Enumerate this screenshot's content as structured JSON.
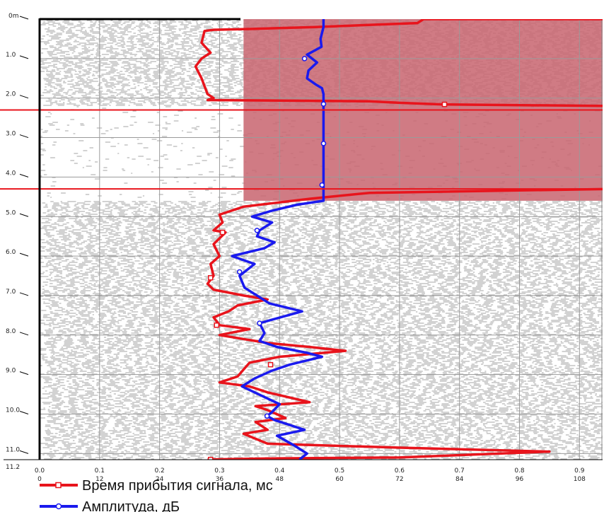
{
  "chart_data": {
    "type": "line",
    "orientation": "depth-vertical",
    "y_axis": {
      "label": "",
      "range": [
        0,
        11.2
      ],
      "top_label": "0m",
      "bottom_label": "11.2",
      "tick_labels": [
        "1.0",
        "2.0",
        "3.0",
        "4.0",
        "5.0",
        "6.0",
        "7.0",
        "8.0",
        "9.0",
        "10.0",
        "11.0"
      ]
    },
    "x_axis_time": {
      "range": [
        0,
        1.0
      ],
      "tick_labels": [
        "0.0",
        "0.1",
        "0.2",
        "0.3",
        "0.4",
        "0.5",
        "0.6",
        "0.7",
        "0.8",
        "0.9"
      ]
    },
    "x_axis_amplitude": {
      "range": [
        0,
        120
      ],
      "tick_labels": [
        "0",
        "12",
        "24",
        "36",
        "48",
        "60",
        "72",
        "84",
        "96",
        "108"
      ]
    },
    "grid": true,
    "background": "seismogram",
    "shaded_zones": [
      {
        "depth_from": 0,
        "depth_to": 4.6,
        "x_from": 0.34,
        "color": "#c8646e"
      }
    ],
    "horizontal_lines": [
      {
        "depth": 2.3,
        "color": "#e8141c"
      },
      {
        "depth": 4.3,
        "color": "#e8141c"
      }
    ],
    "series": [
      {
        "name": "Время прибытия сигнала, мс",
        "color": "#e8141c",
        "axis": "time",
        "points": [
          [
            0.95,
            0.0
          ],
          [
            0.64,
            0.0
          ],
          [
            0.63,
            0.1
          ],
          [
            0.46,
            0.2
          ],
          [
            0.35,
            0.25
          ],
          [
            0.29,
            0.27
          ],
          [
            0.275,
            0.3
          ],
          [
            0.27,
            0.6
          ],
          [
            0.285,
            0.85
          ],
          [
            0.27,
            1.0
          ],
          [
            0.26,
            1.2
          ],
          [
            0.27,
            1.5
          ],
          [
            0.275,
            1.7
          ],
          [
            0.28,
            1.9
          ],
          [
            0.29,
            2.0
          ],
          [
            0.28,
            2.05
          ],
          [
            0.55,
            2.08
          ],
          [
            0.6,
            2.12
          ],
          [
            0.67,
            2.16
          ],
          [
            0.95,
            2.2
          ],
          [
            0.95,
            4.3
          ],
          [
            0.55,
            4.4
          ],
          [
            0.45,
            4.55
          ],
          [
            0.34,
            4.75
          ],
          [
            0.3,
            4.95
          ],
          [
            0.305,
            5.15
          ],
          [
            0.29,
            5.35
          ],
          [
            0.31,
            5.4
          ],
          [
            0.29,
            5.7
          ],
          [
            0.3,
            6.0
          ],
          [
            0.285,
            6.2
          ],
          [
            0.29,
            6.5
          ],
          [
            0.28,
            6.7
          ],
          [
            0.29,
            6.85
          ],
          [
            0.34,
            7.0
          ],
          [
            0.38,
            7.1
          ],
          [
            0.33,
            7.25
          ],
          [
            0.315,
            7.4
          ],
          [
            0.29,
            7.55
          ],
          [
            0.3,
            7.75
          ],
          [
            0.35,
            7.85
          ],
          [
            0.3,
            8.0
          ],
          [
            0.38,
            8.2
          ],
          [
            0.45,
            8.3
          ],
          [
            0.51,
            8.4
          ],
          [
            0.4,
            8.55
          ],
          [
            0.35,
            8.7
          ],
          [
            0.33,
            9.05
          ],
          [
            0.3,
            9.2
          ],
          [
            0.35,
            9.3
          ],
          [
            0.38,
            9.45
          ],
          [
            0.45,
            9.7
          ],
          [
            0.36,
            9.8
          ],
          [
            0.38,
            9.9
          ],
          [
            0.41,
            10.1
          ],
          [
            0.36,
            10.2
          ],
          [
            0.38,
            10.4
          ],
          [
            0.34,
            10.5
          ],
          [
            0.38,
            10.75
          ],
          [
            0.6,
            10.85
          ],
          [
            0.85,
            10.95
          ],
          [
            0.6,
            11.1
          ],
          [
            0.4,
            11.12
          ],
          [
            0.28,
            11.15
          ]
        ],
        "markers": [
          [
            0.675,
            2.16
          ],
          [
            0.305,
            5.4
          ],
          [
            0.285,
            6.55
          ],
          [
            0.295,
            7.75
          ],
          [
            0.385,
            8.75
          ],
          [
            0.285,
            11.15
          ]
        ]
      },
      {
        "name": "Амплитуда, дБ",
        "color": "#1a1aee",
        "axis": "amplitude",
        "points": [
          [
            56.8,
            0.0
          ],
          [
            56.8,
            0.2
          ],
          [
            56.2,
            0.5
          ],
          [
            56.4,
            0.7
          ],
          [
            53.5,
            0.9
          ],
          [
            55.5,
            1.1
          ],
          [
            53.8,
            1.3
          ],
          [
            53.5,
            1.5
          ],
          [
            55.2,
            1.65
          ],
          [
            56.5,
            1.75
          ],
          [
            56.8,
            1.9
          ],
          [
            56.8,
            4.6
          ],
          [
            51.5,
            4.7
          ],
          [
            46.5,
            4.85
          ],
          [
            42.5,
            5.0
          ],
          [
            46.5,
            5.15
          ],
          [
            44.0,
            5.35
          ],
          [
            43.5,
            5.5
          ],
          [
            47.0,
            5.65
          ],
          [
            45.0,
            5.8
          ],
          [
            38.5,
            6.0
          ],
          [
            43.0,
            6.2
          ],
          [
            40.0,
            6.5
          ],
          [
            41.0,
            6.8
          ],
          [
            46.0,
            7.2
          ],
          [
            52.5,
            7.4
          ],
          [
            44.0,
            7.7
          ],
          [
            45.0,
            7.95
          ],
          [
            44.0,
            8.15
          ],
          [
            47.5,
            8.3
          ],
          [
            53.5,
            8.45
          ],
          [
            56.5,
            8.55
          ],
          [
            50.0,
            8.75
          ],
          [
            46.5,
            8.9
          ],
          [
            43.0,
            9.1
          ],
          [
            40.5,
            9.3
          ],
          [
            45.5,
            9.6
          ],
          [
            48.0,
            9.75
          ],
          [
            46.5,
            9.95
          ],
          [
            45.5,
            10.05
          ],
          [
            47.0,
            10.15
          ],
          [
            53.0,
            10.4
          ],
          [
            47.5,
            10.55
          ],
          [
            51.0,
            10.8
          ],
          [
            53.5,
            11.0
          ],
          [
            52.0,
            11.15
          ]
        ],
        "markers": [
          [
            56.8,
            2.15
          ],
          [
            56.8,
            3.15
          ],
          [
            56.5,
            4.2
          ],
          [
            43.5,
            5.35
          ],
          [
            40.0,
            6.4
          ],
          [
            44.0,
            7.7
          ],
          [
            45.5,
            10.05
          ],
          [
            53.0,
            1.0
          ]
        ]
      }
    ],
    "legend": {
      "placement": "bottom-left",
      "entries": [
        {
          "label": "Время прибытия сигнала, мс",
          "color": "#e8141c"
        },
        {
          "label": "Амплитуда, дБ",
          "color": "#1a1aee"
        }
      ]
    }
  }
}
